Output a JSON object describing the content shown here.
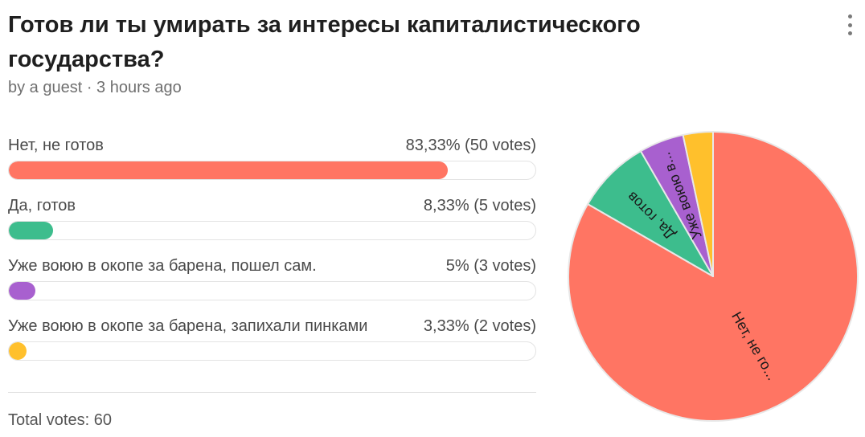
{
  "poll": {
    "title": "Готов ли ты умирать за интересы капиталистического государства?",
    "byline": "by a guest · 3 hours ago",
    "total": "Total votes: 60"
  },
  "options": [
    {
      "label": "Нет, не готов",
      "result": "83,33% (50 votes)",
      "percent": 83.33,
      "votes": 50,
      "color": "#ff7563",
      "pie_label": "Нет, не го..."
    },
    {
      "label": "Да, готов",
      "result": "8,33% (5 votes)",
      "percent": 8.33,
      "votes": 5,
      "color": "#3dbd8d",
      "pie_label": "Да, готов"
    },
    {
      "label": "Уже воюю в окопе за барена, пошел сам.",
      "result": "5% (3 votes)",
      "percent": 5,
      "votes": 3,
      "color": "#a860cf",
      "pie_label": "Уже воюю в..."
    },
    {
      "label": "Уже воюю в окопе за барена, запихали пинками",
      "result": "3,33% (2 votes)",
      "percent": 3.33,
      "votes": 2,
      "color": "#ffc02c",
      "pie_label": ""
    }
  ],
  "chart_data": {
    "type": "pie",
    "categories": [
      "Нет, не готов",
      "Да, готов",
      "Уже воюю в окопе за барена, пошел сам.",
      "Уже воюю в окопе за барена, запихали пинками"
    ],
    "values": [
      50,
      5,
      3,
      2
    ],
    "percentages": [
      83.33,
      8.33,
      5,
      3.33
    ],
    "colors": [
      "#ff7563",
      "#3dbd8d",
      "#a860cf",
      "#ffc02c"
    ],
    "slice_labels": [
      "Нет, не го...",
      "Да, готов",
      "Уже воюю в...",
      ""
    ],
    "direction": "clockwise from top"
  }
}
